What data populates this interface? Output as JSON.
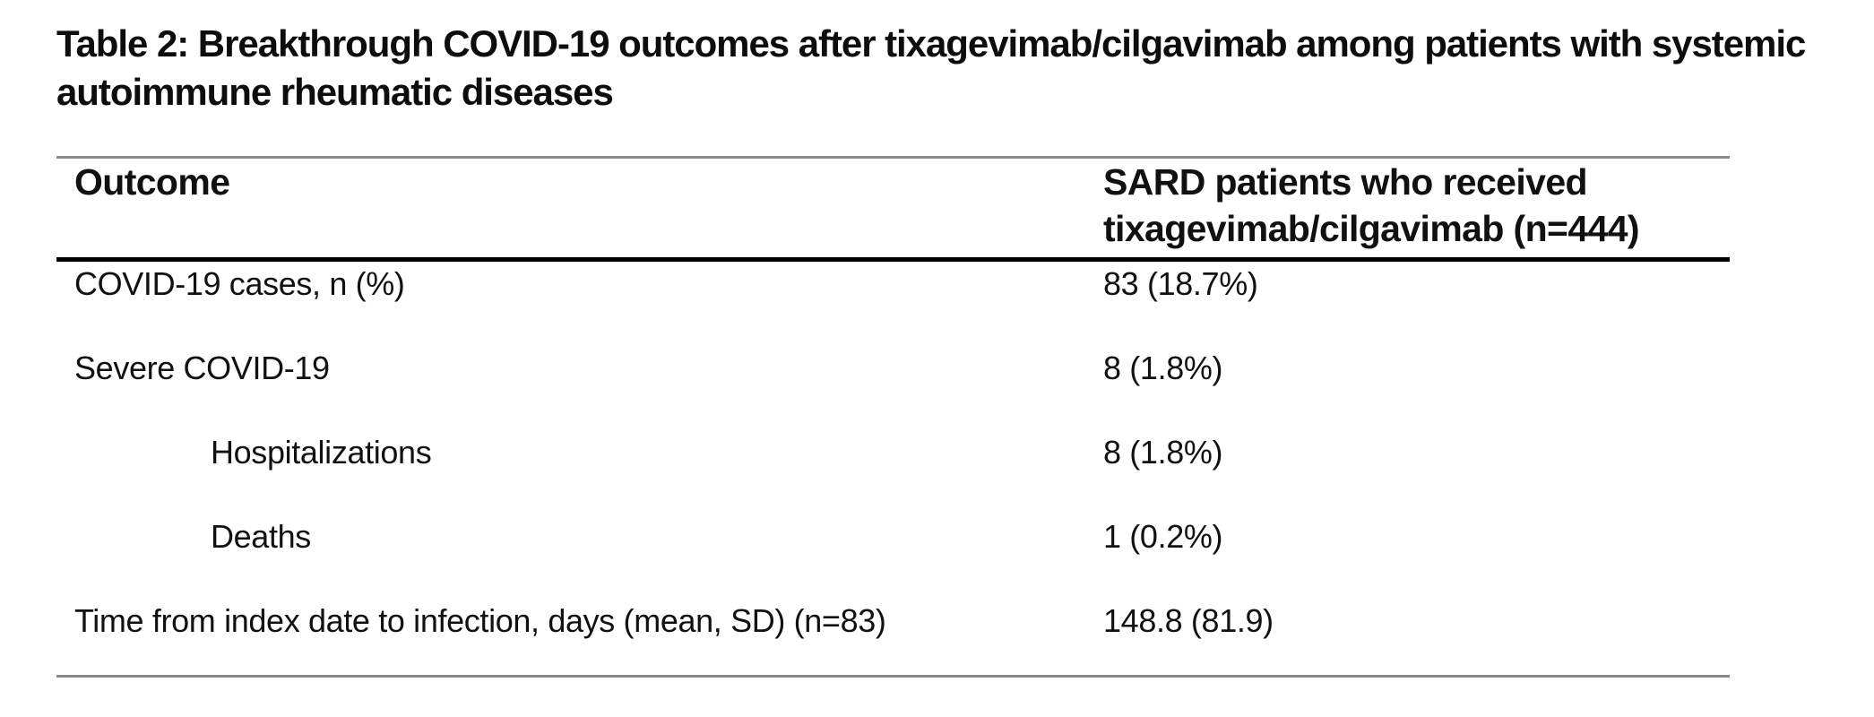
{
  "page": {
    "title_lines": [
      "Table 2: Breakthrough COVID-19 outcomes after tixagevimab/cilgavimab among patients with systemic",
      "autoimmune rheumatic diseases"
    ]
  },
  "table": {
    "header": {
      "outcome": "Outcome",
      "cohort": "SARD patients who received tixagevimab/cilgavimab (n=444)"
    },
    "rows": [
      {
        "outcome": "COVID-19 cases, n (%)",
        "value": "83 (18.7%)"
      },
      {
        "outcome": "Severe COVID-19",
        "value": "8 (1.8%)"
      },
      {
        "outcome": "Hospitalizations",
        "value": "8 (1.8%)"
      },
      {
        "outcome": "Deaths",
        "value": "1 (0.2%)"
      },
      {
        "outcome": "Time from index date to infection, days (mean, SD) (n=83)",
        "value": "148.8 (81.9)"
      }
    ]
  },
  "colors": {
    "background": "#ffffff",
    "text": "#111111",
    "rule_thin": "#8a8a8a",
    "rule_thick": "#000000"
  }
}
